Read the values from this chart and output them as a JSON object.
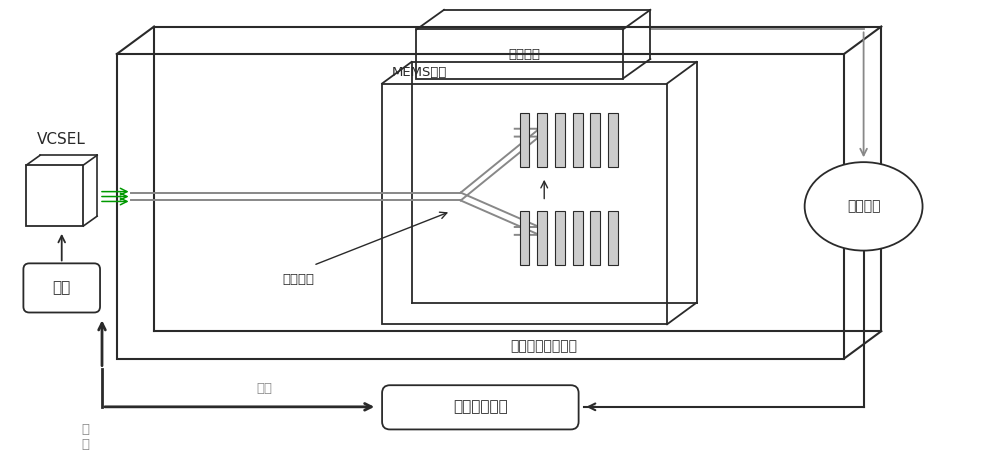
{
  "bg_color": "#ffffff",
  "line_color": "#2a2a2a",
  "gray_color": "#888888",
  "green_color": "#009900",
  "labels": {
    "vcsel": "VCSEL",
    "mems": "MEMS气室",
    "detect": "探测单元",
    "phase": "相位调制",
    "grating": "纳米垂直耦合光栅",
    "temp": "温控",
    "subtract": "减法单元",
    "ic_chip": "集成电路芯片",
    "drive": "驱\n动",
    "feedback": "反馈"
  }
}
